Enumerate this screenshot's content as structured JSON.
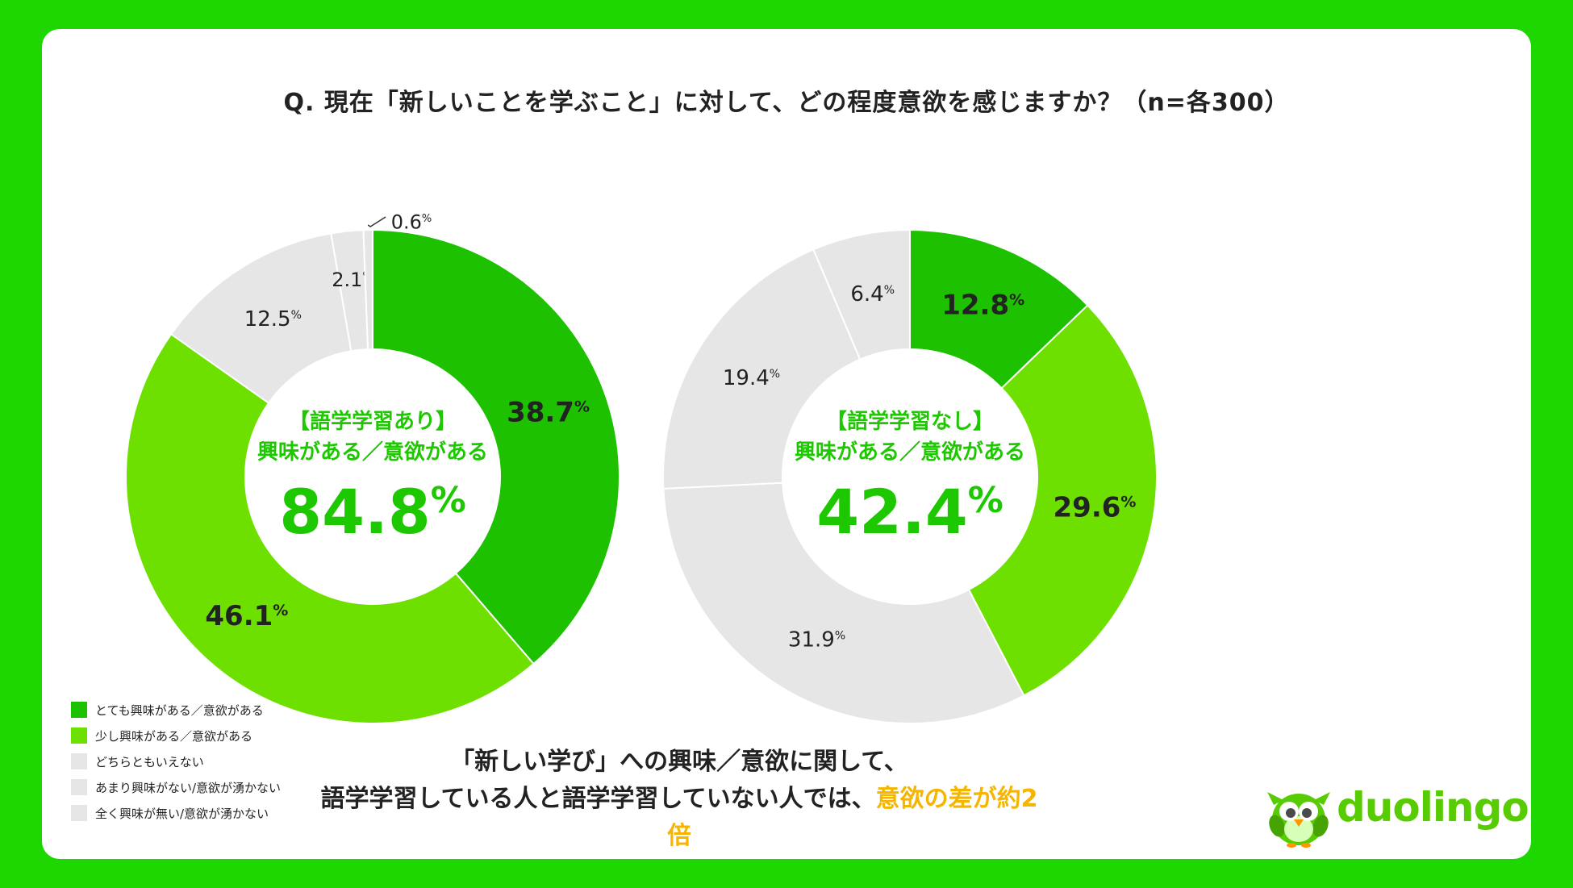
{
  "question": "Q. 現在「新しいことを学ぶこと」に対して、どの程度意欲を感じますか？（n=各300）",
  "colors": {
    "background": "#1ed700",
    "very_interested": "#1ec100",
    "somewhat_interested": "#6ee000",
    "other": "#e6e6e6",
    "center_text": "#1ec800",
    "accent": "#f6b500"
  },
  "legend": [
    {
      "label": "とても興味がある／意欲がある",
      "color": "#1ec100"
    },
    {
      "label": "少し興味がある／意欲がある",
      "color": "#6ee000"
    },
    {
      "label": "どちらともいえない",
      "color": "#e6e6e6"
    },
    {
      "label": "あまり興味がない/意欲が湧かない",
      "color": "#e6e6e6"
    },
    {
      "label": "全く興味が無い/意欲が湧かない",
      "color": "#e6e6e6"
    }
  ],
  "chart_data": [
    {
      "type": "pie",
      "categories": [
        "とても興味がある／意欲がある",
        "少し興味がある／意欲がある",
        "どちらともいえない",
        "あまり興味がない/意欲が湧かない",
        "全く興味が無い/意欲が湧かない"
      ],
      "values": [
        38.7,
        46.1,
        12.5,
        2.1,
        0.6
      ],
      "labels": [
        "38.7",
        "46.1",
        "12.5",
        "2.1",
        "0.6"
      ],
      "unit": "%",
      "center_title": "【語学学習あり】",
      "center_subtitle": "興味がある／意欲がある",
      "center_value": "84.8"
    },
    {
      "type": "pie",
      "categories": [
        "とても興味がある／意欲がある",
        "少し興味がある／意欲がある",
        "どちらともいえない",
        "あまり興味がない/意欲が湧かない",
        "全く興味が無い/意欲が湧かない"
      ],
      "values": [
        12.8,
        29.6,
        31.9,
        19.4,
        6.4
      ],
      "labels": [
        "12.8",
        "29.6",
        "31.9",
        "19.4",
        "6.4"
      ],
      "unit": "%",
      "center_title": "【語学学習なし】",
      "center_subtitle": "興味がある／意欲がある",
      "center_value": "42.4"
    }
  ],
  "conclusion": {
    "line1": "「新しい学び」への興味／意欲に関して、",
    "line2": "語学学習している人と語学学習していない人では、",
    "highlight": "意欲の差が約2倍"
  },
  "brand": {
    "name": "duolingo",
    "mascot_icon": "owl-icon"
  }
}
